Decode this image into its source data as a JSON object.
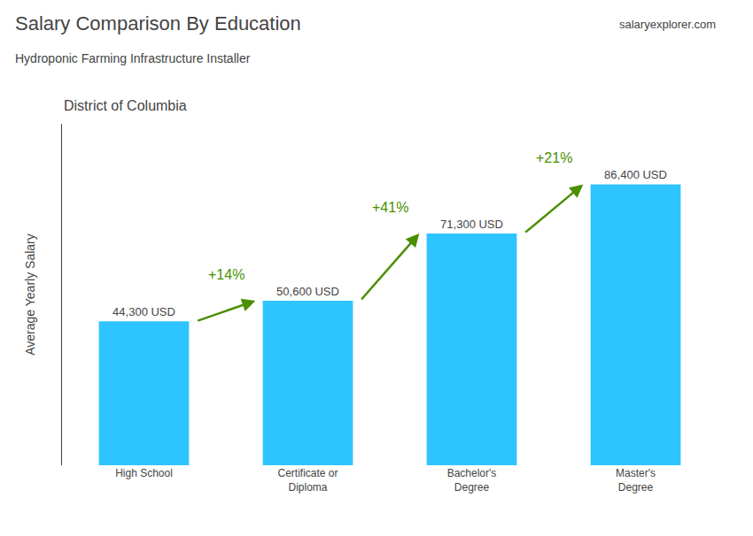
{
  "chart_data": {
    "type": "bar",
    "title": "Salary Comparison By Education",
    "subtitle": "Hydroponic Farming Infrastructure Installer",
    "ylabel": "Average Yearly Salary",
    "categories": [
      "High School",
      "Certificate or\nDiploma",
      "Bachelor's\nDegree",
      "Master's\nDegree"
    ],
    "values": [
      44300,
      50600,
      71300,
      86400
    ],
    "value_labels": [
      "44,300 USD",
      "50,600 USD",
      "71,300 USD",
      "86,400 USD"
    ],
    "data_labels": true,
    "color": "#2ec4ff",
    "ylim": [
      0,
      105000
    ],
    "grid": false,
    "tick_labels": "x",
    "annotations": [
      {
        "text": "District of Columbia"
      },
      {
        "text": "salaryexplorer.com"
      },
      {
        "text": "+14%",
        "from": "High School",
        "to": "Certificate or\nDiploma"
      },
      {
        "text": "+41%",
        "from": "Certificate or\nDiploma",
        "to": "Bachelor's\nDegree"
      },
      {
        "text": "+21%",
        "from": "Bachelor's\nDegree",
        "to": "Master's\nDegree"
      }
    ]
  }
}
